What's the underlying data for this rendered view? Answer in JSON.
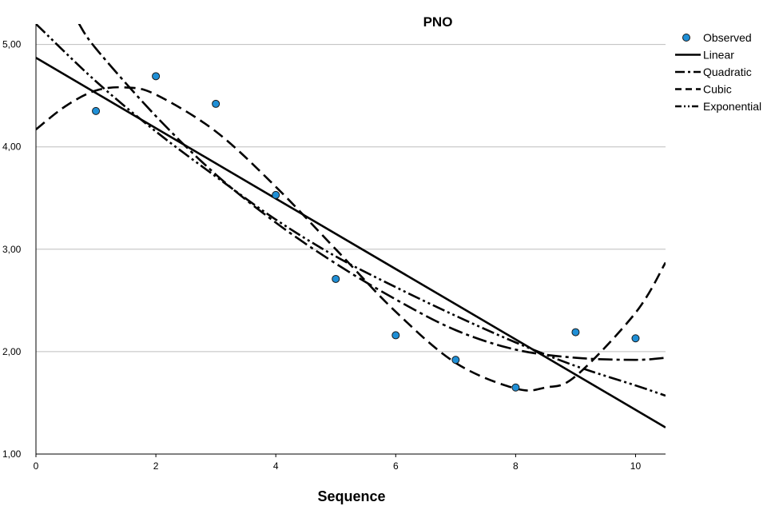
{
  "chart_data": {
    "type": "scatter",
    "title": "PNO",
    "xlabel": "Sequence",
    "ylabel": "",
    "xlim": [
      0,
      10.5
    ],
    "ylim": [
      1.0,
      5.2
    ],
    "x_ticks": [
      "0",
      "2",
      "4",
      "6",
      "8",
      "10"
    ],
    "y_ticks": [
      "1,00",
      "2,00",
      "3,00",
      "4,00",
      "5,00"
    ],
    "y_tick_values": [
      1,
      2,
      3,
      4,
      5
    ],
    "x_tick_values": [
      0,
      2,
      4,
      6,
      8,
      10
    ],
    "grid": "horizontal",
    "legend_position": "right",
    "observed": {
      "name": "Observed",
      "color": "#1f8fd6",
      "x": [
        1,
        2,
        3,
        4,
        5,
        6,
        7,
        8,
        9,
        10
      ],
      "y": [
        4.35,
        4.69,
        4.42,
        3.53,
        2.71,
        2.16,
        1.92,
        1.65,
        2.19,
        2.13
      ]
    },
    "series": [
      {
        "name": "Linear",
        "style": "solid",
        "x": [
          0,
          10.5
        ],
        "y": [
          4.87,
          1.26
        ]
      },
      {
        "name": "Quadratic",
        "style": "dash-dot",
        "x": [
          0.7,
          1,
          2,
          3,
          4,
          5,
          6,
          7,
          8,
          9,
          10,
          10.5
        ],
        "y": [
          5.22,
          4.96,
          4.3,
          3.73,
          3.26,
          2.86,
          2.51,
          2.21,
          2.02,
          1.94,
          1.92,
          1.94
        ]
      },
      {
        "name": "Cubic",
        "style": "dash",
        "x": [
          0,
          0.5,
          1,
          1.5,
          2,
          3,
          4,
          5,
          6,
          7,
          8,
          8.5,
          9,
          10,
          10.5
        ],
        "y": [
          4.17,
          4.4,
          4.55,
          4.58,
          4.51,
          4.15,
          3.61,
          3.0,
          2.39,
          1.89,
          1.64,
          1.65,
          1.76,
          2.38,
          2.87
        ]
      },
      {
        "name": "Exponential",
        "style": "dash-dot-dot",
        "x": [
          0,
          1,
          2,
          3,
          4,
          5,
          6,
          7,
          8,
          9,
          10,
          10.5
        ],
        "y": [
          5.2,
          4.64,
          4.15,
          3.71,
          3.29,
          2.93,
          2.63,
          2.35,
          2.09,
          1.86,
          1.67,
          1.57
        ]
      }
    ],
    "legend": [
      "Observed",
      "Linear",
      "Quadratic",
      "Cubic",
      "Exponential"
    ]
  }
}
